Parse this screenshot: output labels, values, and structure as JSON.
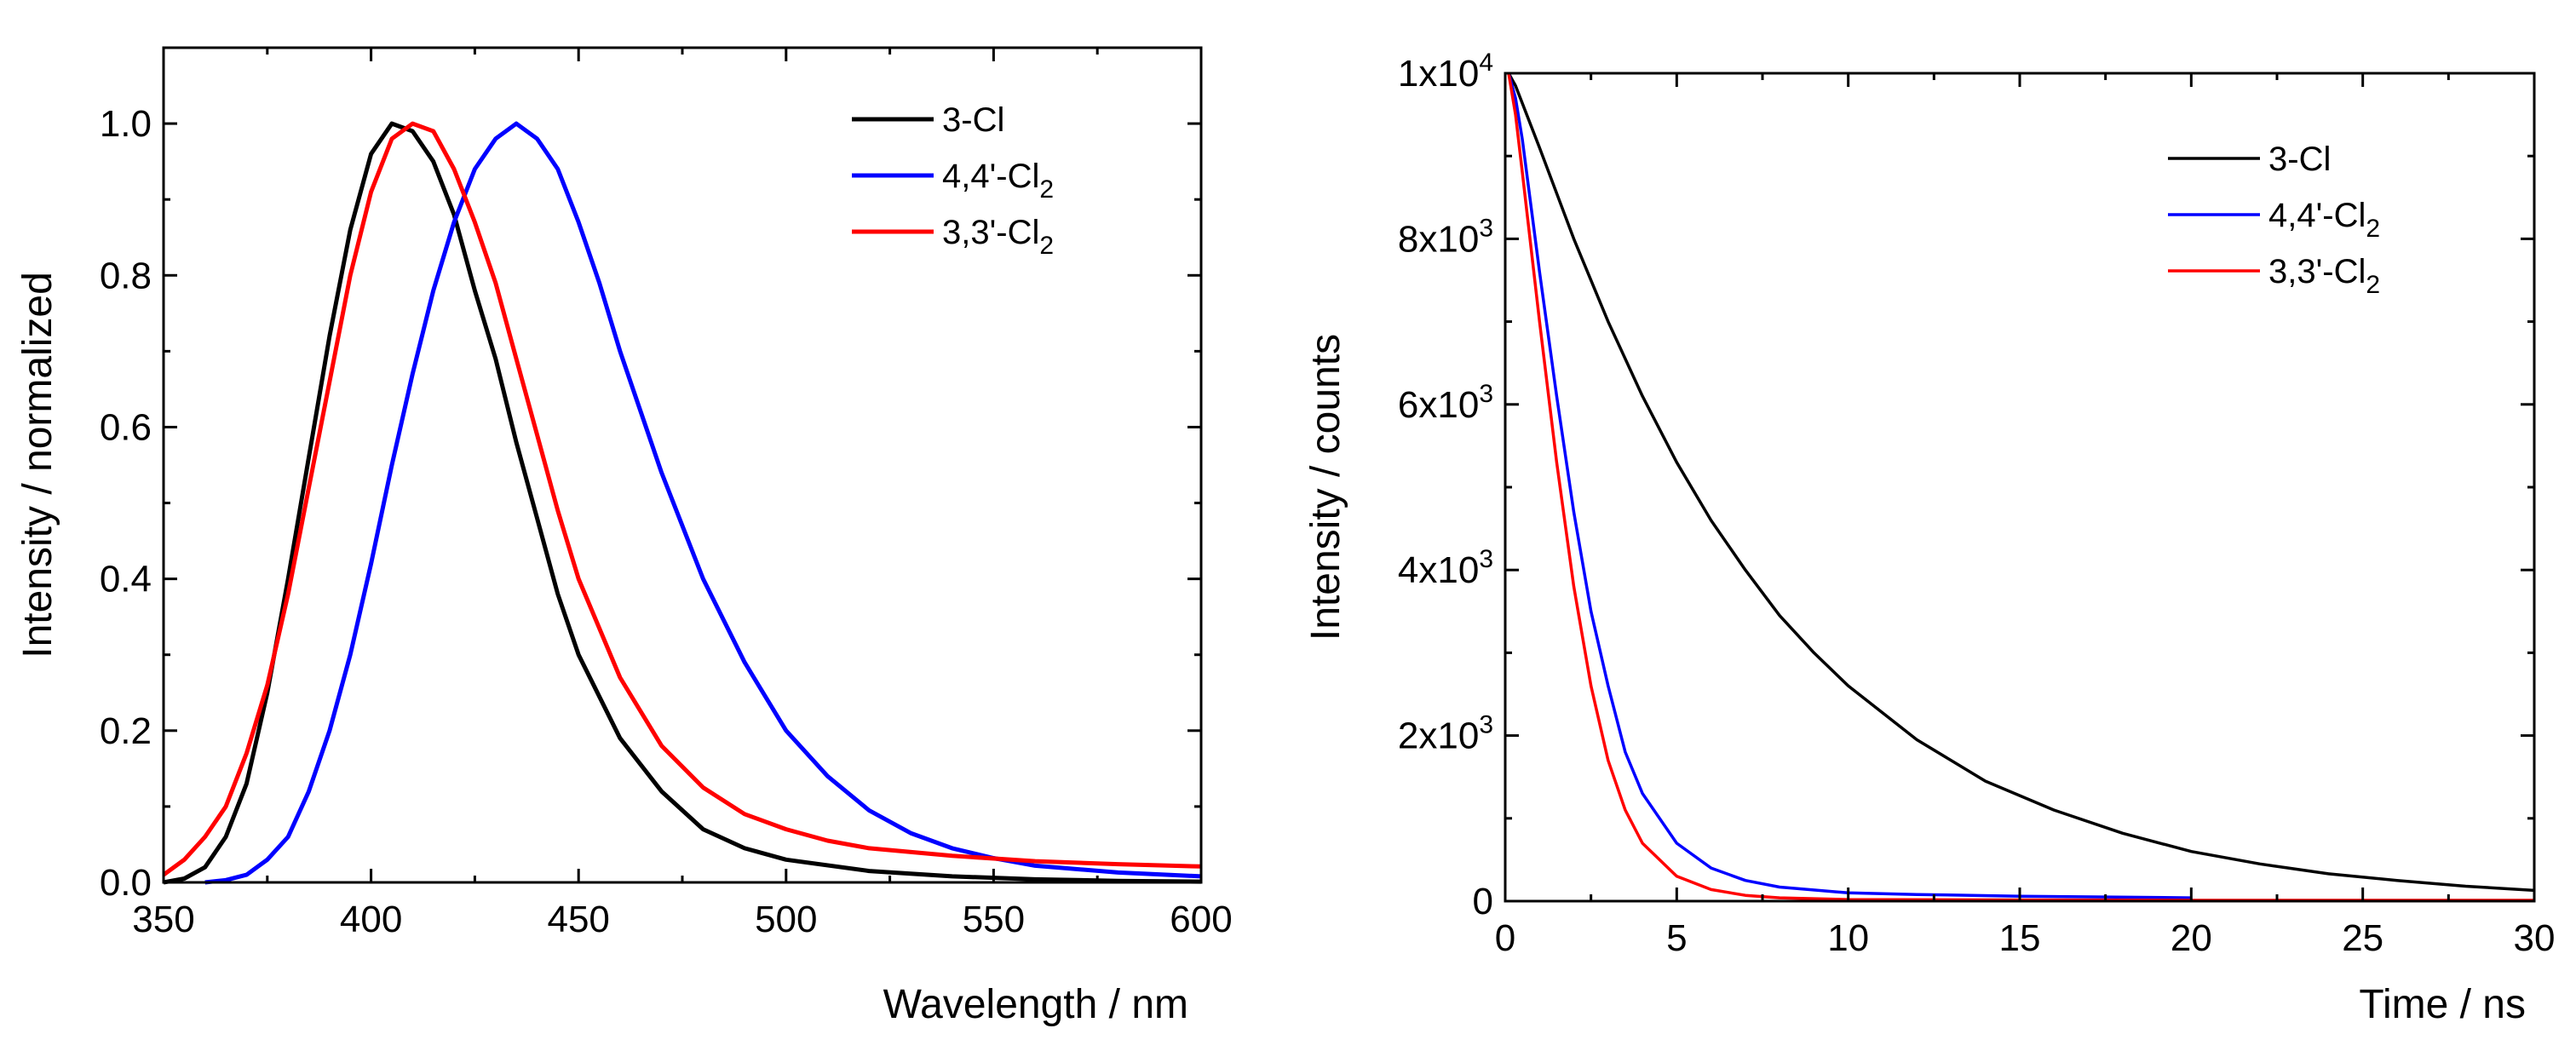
{
  "chart_data": [
    {
      "type": "line",
      "id": "emission",
      "xlabel": "Wavelength / nm",
      "ylabel": "Intensity / normalized",
      "xlim": [
        350,
        600
      ],
      "ylim": [
        0,
        1.1
      ],
      "xticks": [
        350,
        400,
        450,
        500,
        550,
        600
      ],
      "xtick_labels": [
        "350",
        "400",
        "450",
        "500",
        "550",
        "600"
      ],
      "yticks": [
        0,
        0.2,
        0.4,
        0.6,
        0.8,
        1.0
      ],
      "ytick_labels": [
        "0.0",
        "0.2",
        "0.4",
        "0.6",
        "0.8",
        "1.0"
      ],
      "legend_position": "top-right",
      "series": [
        {
          "name": "3-Cl",
          "name_main": "3-Cl",
          "name_sub": "",
          "color": "#000000",
          "x": [
            350,
            355,
            360,
            365,
            370,
            375,
            380,
            385,
            390,
            395,
            400,
            405,
            410,
            415,
            420,
            425,
            430,
            435,
            440,
            445,
            450,
            460,
            470,
            480,
            490,
            500,
            520,
            540,
            560,
            580,
            600
          ],
          "y": [
            0.0,
            0.005,
            0.02,
            0.06,
            0.13,
            0.25,
            0.4,
            0.56,
            0.72,
            0.86,
            0.96,
            1.0,
            0.99,
            0.95,
            0.88,
            0.78,
            0.69,
            0.58,
            0.48,
            0.38,
            0.3,
            0.19,
            0.12,
            0.07,
            0.045,
            0.03,
            0.015,
            0.008,
            0.004,
            0.002,
            0.001
          ]
        },
        {
          "name": "4,4'-Cl2",
          "name_main": "4,4'-Cl",
          "name_sub": "2",
          "color": "#0000ff",
          "x": [
            360,
            365,
            370,
            375,
            380,
            385,
            390,
            395,
            400,
            405,
            410,
            415,
            420,
            425,
            430,
            435,
            440,
            445,
            450,
            455,
            460,
            470,
            480,
            490,
            500,
            510,
            520,
            530,
            540,
            550,
            560,
            580,
            600
          ],
          "y": [
            0.0,
            0.003,
            0.01,
            0.03,
            0.06,
            0.12,
            0.2,
            0.3,
            0.42,
            0.55,
            0.67,
            0.78,
            0.87,
            0.94,
            0.98,
            1.0,
            0.98,
            0.94,
            0.87,
            0.79,
            0.7,
            0.54,
            0.4,
            0.29,
            0.2,
            0.14,
            0.095,
            0.065,
            0.045,
            0.032,
            0.022,
            0.013,
            0.008
          ]
        },
        {
          "name": "3,3'-Cl2",
          "name_main": "3,3'-Cl",
          "name_sub": "2",
          "color": "#ff0000",
          "x": [
            350,
            355,
            360,
            365,
            370,
            375,
            380,
            385,
            390,
            395,
            400,
            405,
            410,
            415,
            420,
            425,
            430,
            435,
            440,
            445,
            450,
            460,
            470,
            480,
            490,
            500,
            510,
            520,
            540,
            560,
            580,
            600
          ],
          "y": [
            0.01,
            0.03,
            0.06,
            0.1,
            0.17,
            0.26,
            0.38,
            0.52,
            0.66,
            0.8,
            0.91,
            0.98,
            1.0,
            0.99,
            0.94,
            0.87,
            0.79,
            0.69,
            0.59,
            0.49,
            0.4,
            0.27,
            0.18,
            0.125,
            0.09,
            0.07,
            0.055,
            0.045,
            0.035,
            0.028,
            0.024,
            0.021
          ]
        }
      ]
    },
    {
      "type": "line",
      "id": "decay",
      "xlabel": "Time / ns",
      "ylabel": "Intensity / counts",
      "xlim": [
        0,
        30
      ],
      "ylim": [
        0,
        10000
      ],
      "xticks": [
        0,
        5,
        10,
        15,
        20,
        25,
        30
      ],
      "xtick_labels": [
        "0",
        "5",
        "10",
        "15",
        "20",
        "25",
        "30"
      ],
      "yticks": [
        0,
        2000,
        4000,
        6000,
        8000,
        10000
      ],
      "ytick_labels": [
        {
          "main": "0",
          "sup": ""
        },
        {
          "main": "2x10",
          "sup": "3"
        },
        {
          "main": "4x10",
          "sup": "3"
        },
        {
          "main": "6x10",
          "sup": "3"
        },
        {
          "main": "8x10",
          "sup": "3"
        },
        {
          "main": "1x10",
          "sup": "4"
        }
      ],
      "legend_position": "top-right",
      "series": [
        {
          "name": "3-Cl",
          "name_main": "3-Cl",
          "name_sub": "",
          "color": "#000000",
          "x": [
            0.1,
            0.3,
            1,
            2,
            3,
            4,
            5,
            6,
            7,
            8,
            9,
            10,
            12,
            14,
            16,
            18,
            20,
            22,
            24,
            26,
            28,
            30
          ],
          "y": [
            10000,
            9850,
            9100,
            8000,
            7000,
            6100,
            5300,
            4600,
            4000,
            3450,
            3000,
            2600,
            1950,
            1450,
            1100,
            820,
            600,
            450,
            330,
            250,
            180,
            130
          ]
        },
        {
          "name": "4,4'-Cl2",
          "name_main": "4,4'-Cl",
          "name_sub": "2",
          "color": "#0000ff",
          "x": [
            0.1,
            0.3,
            0.5,
            1,
            1.5,
            2,
            2.5,
            3,
            3.5,
            4,
            5,
            6,
            7,
            8,
            10,
            12,
            15,
            20
          ],
          "y": [
            10000,
            9700,
            9200,
            7600,
            6100,
            4700,
            3500,
            2600,
            1800,
            1300,
            700,
            400,
            250,
            170,
            100,
            80,
            60,
            40
          ]
        },
        {
          "name": "3,3'-Cl2",
          "name_main": "3,3'-Cl",
          "name_sub": "2",
          "color": "#ff0000",
          "x": [
            0.1,
            0.3,
            0.5,
            1,
            1.5,
            2,
            2.5,
            3,
            3.5,
            4,
            5,
            6,
            7,
            8,
            10,
            14,
            20,
            30
          ],
          "y": [
            10000,
            9500,
            8800,
            7000,
            5300,
            3800,
            2600,
            1700,
            1100,
            700,
            300,
            140,
            70,
            40,
            20,
            15,
            10,
            10
          ]
        }
      ]
    }
  ]
}
